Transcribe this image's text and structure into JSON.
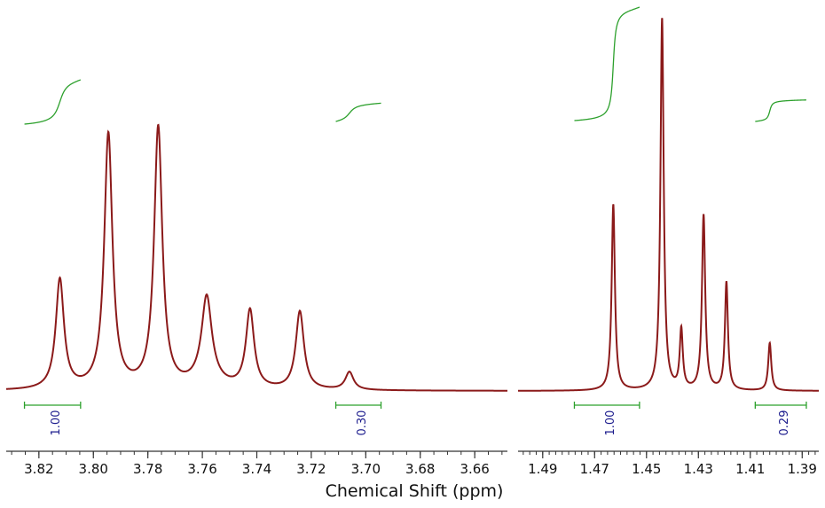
{
  "chart_data": {
    "type": "line",
    "title": "",
    "xlabel": "Chemical Shift (ppm)",
    "ylabel": "",
    "x_reversed": true,
    "grid": false,
    "colors": {
      "spectrum": "#8b1a1a",
      "integral": "#2ca02c",
      "integral_label": "#1a1a8c",
      "axis": "#333333"
    },
    "panels": [
      {
        "xlim": [
          3.832,
          3.648
        ],
        "ticks": [
          "3.82",
          "3.80",
          "3.78",
          "3.76",
          "3.74",
          "3.72",
          "3.70",
          "3.68",
          "3.66"
        ],
        "tick_values": [
          3.82,
          3.8,
          3.78,
          3.76,
          3.74,
          3.72,
          3.7,
          3.68,
          3.66
        ],
        "peaks": [
          {
            "ppm": 3.8123,
            "height": 0.295,
            "width": 0.0018
          },
          {
            "ppm": 3.7945,
            "height": 0.685,
            "width": 0.0018
          },
          {
            "ppm": 3.7762,
            "height": 0.701,
            "width": 0.0018
          },
          {
            "ppm": 3.7584,
            "height": 0.222,
            "width": 0.0022
          },
          {
            "ppm": 3.7584,
            "height": 0.025,
            "width": 0.006
          },
          {
            "ppm": 3.7425,
            "height": 0.21,
            "width": 0.0018
          },
          {
            "ppm": 3.7242,
            "height": 0.21,
            "width": 0.0018
          },
          {
            "ppm": 3.706,
            "height": 0.048,
            "width": 0.0018
          }
        ],
        "integrals": [
          {
            "from": 3.8253,
            "to": 3.8047,
            "value": "1.00"
          },
          {
            "from": 3.711,
            "to": 3.6944,
            "value": "0.30"
          }
        ]
      },
      {
        "xlim": [
          1.4995,
          1.3836
        ],
        "ticks": [
          "1.49",
          "1.47",
          "1.45",
          "1.43",
          "1.41",
          "1.39"
        ],
        "tick_values": [
          1.49,
          1.47,
          1.45,
          1.43,
          1.41,
          1.39
        ],
        "peaks": [
          {
            "ppm": 1.4628,
            "height": 0.5,
            "width": 0.00075
          },
          {
            "ppm": 1.444,
            "height": 1.0,
            "width": 0.00075
          },
          {
            "ppm": 1.4366,
            "height": 0.16,
            "width": 0.0007
          },
          {
            "ppm": 1.428,
            "height": 0.47,
            "width": 0.00075
          },
          {
            "ppm": 1.4192,
            "height": 0.29,
            "width": 0.0007
          },
          {
            "ppm": 1.4025,
            "height": 0.128,
            "width": 0.0007
          }
        ],
        "integrals": [
          {
            "from": 1.4778,
            "to": 1.4527,
            "value": "1.00"
          },
          {
            "from": 1.4081,
            "to": 1.3884,
            "value": "0.29"
          }
        ]
      }
    ]
  }
}
